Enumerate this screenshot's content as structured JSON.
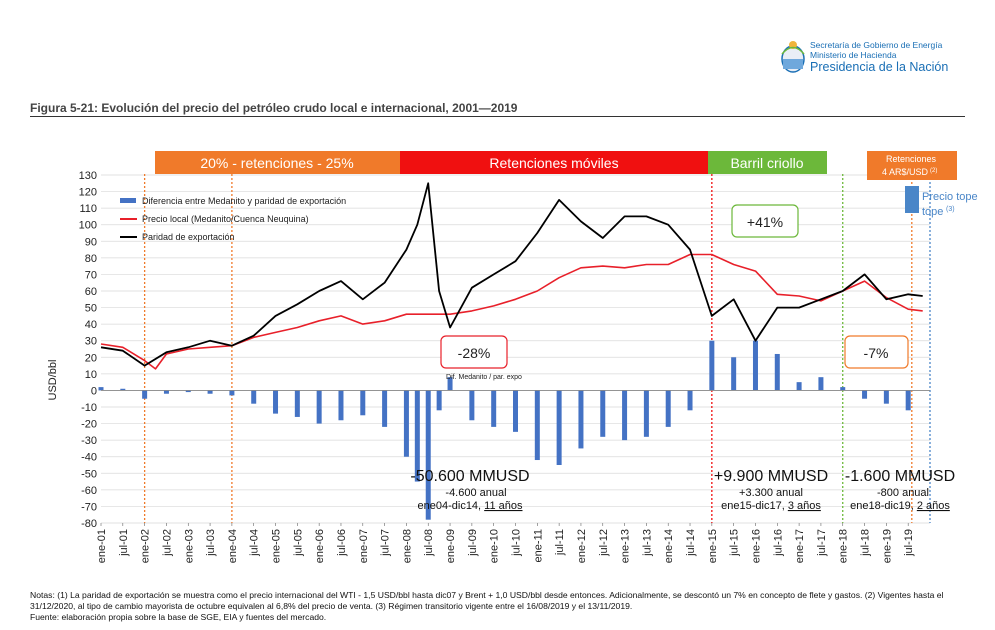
{
  "header": {
    "org_line1": "Secretaría de Gobierno de Energía",
    "org_line2": "Ministerio de Hacienda",
    "org_line3": "Presidencia de la Nación",
    "figure_title": "Figura 5-21: Evolución del precio del petróleo crudo local e internacional, 2001—2019"
  },
  "chart_data": {
    "type": "line",
    "ylabel": "USD/bbl",
    "ylim": [
      -80,
      130
    ],
    "yticks": [
      130,
      120,
      110,
      100,
      90,
      80,
      70,
      60,
      50,
      40,
      30,
      20,
      10,
      0,
      -10,
      -20,
      -30,
      -40,
      -50,
      -60,
      -70,
      -80
    ],
    "x_tick_labels": [
      "ene-01",
      "jul-01",
      "ene-02",
      "jul-02",
      "ene-03",
      "jul-03",
      "ene-04",
      "jul-04",
      "ene-05",
      "jul-05",
      "ene-06",
      "jul-06",
      "ene-07",
      "jul-07",
      "ene-08",
      "jul-08",
      "ene-09",
      "jul-09",
      "ene-10",
      "jul-10",
      "ene-11",
      "jul-11",
      "ene-12",
      "jul-12",
      "ene-13",
      "jul-13",
      "ene-14",
      "jul-14",
      "ene-15",
      "jul-15",
      "ene-16",
      "jul-16",
      "ene-17",
      "jul-17",
      "ene-18",
      "jul-18",
      "ene-19",
      "jul-19"
    ],
    "grid": true,
    "legend_position": "top-left",
    "series": [
      {
        "name": "Diferencia entre Medanito y paridad de exportación",
        "kind": "bar",
        "color": "#4472c4",
        "x": [
          "2001-01",
          "2001-07",
          "2002-01",
          "2002-07",
          "2003-01",
          "2003-07",
          "2004-01",
          "2004-07",
          "2005-01",
          "2005-07",
          "2006-01",
          "2006-07",
          "2007-01",
          "2007-07",
          "2008-01",
          "2008-04",
          "2008-07",
          "2008-10",
          "2009-01",
          "2009-07",
          "2010-01",
          "2010-07",
          "2011-01",
          "2011-07",
          "2012-01",
          "2012-07",
          "2013-01",
          "2013-07",
          "2014-01",
          "2014-07",
          "2015-01",
          "2015-07",
          "2016-01",
          "2016-07",
          "2017-01",
          "2017-07",
          "2018-01",
          "2018-07",
          "2019-01",
          "2019-07"
        ],
        "y": [
          2,
          1,
          -5,
          -2,
          -1,
          -2,
          -3,
          -8,
          -14,
          -16,
          -20,
          -18,
          -15,
          -22,
          -40,
          -55,
          -78,
          -12,
          8,
          -18,
          -22,
          -25,
          -42,
          -45,
          -35,
          -28,
          -30,
          -28,
          -22,
          -12,
          30,
          20,
          30,
          22,
          5,
          8,
          2,
          -5,
          -8,
          -12
        ]
      },
      {
        "name": "Precio local (Medanito/Cuenca Neuquina)",
        "kind": "line",
        "color": "#e8202a",
        "x": [
          "2001-01",
          "2001-07",
          "2002-01",
          "2002-04",
          "2002-07",
          "2003-01",
          "2003-07",
          "2004-01",
          "2004-07",
          "2005-01",
          "2005-07",
          "2006-01",
          "2006-07",
          "2007-01",
          "2007-07",
          "2008-01",
          "2008-07",
          "2009-01",
          "2009-07",
          "2010-01",
          "2010-07",
          "2011-01",
          "2011-07",
          "2012-01",
          "2012-07",
          "2013-01",
          "2013-07",
          "2014-01",
          "2014-07",
          "2015-01",
          "2015-07",
          "2016-01",
          "2016-07",
          "2017-01",
          "2017-07",
          "2018-01",
          "2018-07",
          "2019-01",
          "2019-07",
          "2019-11"
        ],
        "y": [
          28,
          26,
          18,
          13,
          22,
          25,
          26,
          27,
          32,
          35,
          38,
          42,
          45,
          40,
          42,
          46,
          46,
          46,
          48,
          51,
          55,
          60,
          68,
          74,
          75,
          74,
          76,
          76,
          82,
          82,
          76,
          72,
          58,
          57,
          54,
          60,
          66,
          56,
          49,
          48
        ]
      },
      {
        "name": "Paridad de exportación",
        "kind": "line",
        "color": "#000000",
        "x": [
          "2001-01",
          "2001-07",
          "2002-01",
          "2002-07",
          "2003-01",
          "2003-07",
          "2004-01",
          "2004-07",
          "2005-01",
          "2005-07",
          "2006-01",
          "2006-07",
          "2007-01",
          "2007-07",
          "2008-01",
          "2008-04",
          "2008-07",
          "2008-10",
          "2009-01",
          "2009-07",
          "2010-01",
          "2010-07",
          "2011-01",
          "2011-07",
          "2012-01",
          "2012-07",
          "2013-01",
          "2013-07",
          "2014-01",
          "2014-07",
          "2015-01",
          "2015-07",
          "2016-01",
          "2016-07",
          "2017-01",
          "2017-07",
          "2018-01",
          "2018-07",
          "2019-01",
          "2019-07",
          "2019-11"
        ],
        "y": [
          26,
          24,
          15,
          23,
          26,
          30,
          27,
          33,
          45,
          52,
          60,
          66,
          55,
          65,
          85,
          100,
          125,
          60,
          38,
          62,
          70,
          78,
          95,
          115,
          102,
          92,
          105,
          105,
          100,
          85,
          45,
          55,
          30,
          50,
          50,
          55,
          60,
          70,
          55,
          58,
          57
        ]
      }
    ],
    "regime_labels": [
      {
        "text": "20% - retenciones - 25%",
        "color": "#f07a2a"
      },
      {
        "text": "Retenciones móviles",
        "color": "#f01010"
      },
      {
        "text": "Barril criollo",
        "color": "#6cb83a"
      },
      {
        "text": "Retenciones 4 AR$/USD",
        "sup": "(2)",
        "color": "#f07a2a"
      }
    ],
    "price_cap_label": "Precio tope",
    "price_cap_sup": "(3)",
    "annotations": {
      "pct_retenciones": "-28%",
      "pct_barril": "+41%",
      "pct_2018": "-7%",
      "dif_label": "Dif. Medanito / par. expo",
      "sum1_total": "-50.600 MMUSD",
      "sum1_annual": "-4.600 anual",
      "sum1_period_a": "ene04-dic14, ",
      "sum1_period_b": "11 años",
      "sum2_total": "+9.900 MMUSD",
      "sum2_annual": "+3.300 anual",
      "sum2_period_a": "ene15-dic17, ",
      "sum2_period_b": "3 años",
      "sum3_total": "-1.600 MMUSD",
      "sum3_annual": "-800 anual",
      "sum3_period_a": "ene18-dic19, ",
      "sum3_period_b": "2 años"
    }
  },
  "notes": {
    "line1": "Notas: (1) La paridad de exportación se muestra como el precio internacional del WTI - 1,5 USD/bbl hasta dic07 y Brent + 1,0 USD/bbl desde entonces. Adicionalmente, se descontó un 7% en concepto de flete y gastos. (2) Vigentes hasta el 31/12/2020, al tipo de cambio mayorista de octubre equivalen al 6,8% del precio de venta. (3) Régimen transitorio vigente entre el 16/08/2019 y el 13/11/2019.",
    "line2": "Fuente: elaboración propia sobre la base de SGE, EIA y fuentes del mercado."
  }
}
